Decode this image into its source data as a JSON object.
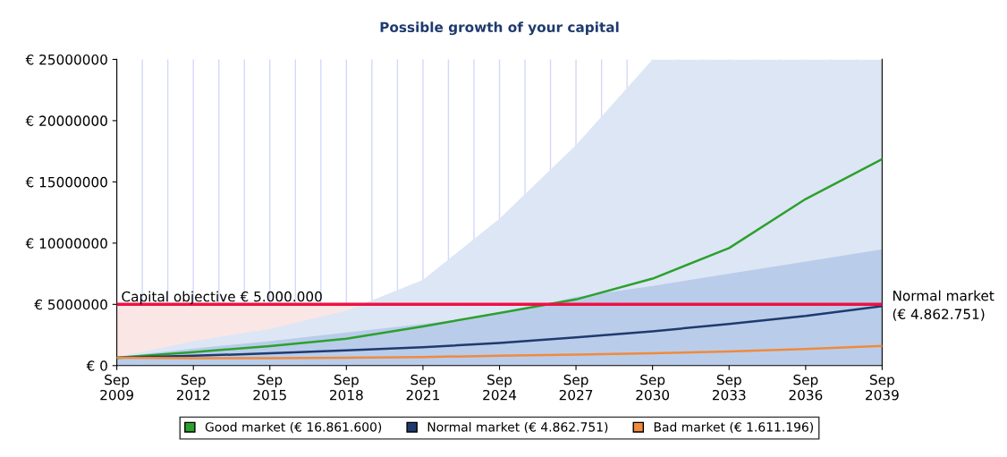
{
  "chart_data": {
    "type": "line",
    "title": "Possible growth of your capital",
    "x": [
      "2009-09",
      "2012-09",
      "2015-09",
      "2018-09",
      "2021-09",
      "2024-09",
      "2027-09",
      "2030-09",
      "2033-09",
      "2036-09",
      "2039-09"
    ],
    "series": [
      {
        "type": "area",
        "color": "#dde6f5",
        "values": [
          700000,
          2000000,
          3000000,
          4500000,
          7000000,
          12000000,
          18000000,
          25000000,
          25000000,
          25000000,
          25000000
        ]
      },
      {
        "type": "area",
        "color": "#b9cdea",
        "values": [
          700000,
          1400000,
          2000000,
          2700000,
          3400000,
          4200000,
          5600000,
          6500000,
          7500000,
          8500000,
          9500000
        ]
      },
      {
        "name": "Good market (€ 16.861.600)",
        "color": "#2ca02c",
        "values": [
          650000,
          1100000,
          1600000,
          2200000,
          3200000,
          4300000,
          5400000,
          7100000,
          9600000,
          13600000,
          16860000
        ]
      },
      {
        "name": "Normal market (€ 4.862.751)",
        "color": "#1f3a6e",
        "values": [
          650000,
          800000,
          1000000,
          1250000,
          1500000,
          1850000,
          2300000,
          2800000,
          3400000,
          4050000,
          4860000
        ]
      },
      {
        "name": "Bad market (€ 1.611.196)",
        "color": "#f08a3c",
        "values": [
          650000,
          600000,
          600000,
          650000,
          700000,
          800000,
          900000,
          1000000,
          1150000,
          1350000,
          1610000
        ]
      }
    ],
    "xlim": [
      "2009-09",
      "2039-09"
    ],
    "xticks": [
      {
        "value": "2009-09",
        "label": "Sep\n2009"
      },
      {
        "value": "2012-09",
        "label": "Sep\n2012"
      },
      {
        "value": "2015-09",
        "label": "Sep\n2015"
      },
      {
        "value": "2018-09",
        "label": "Sep\n2018"
      },
      {
        "value": "2021-09",
        "label": "Sep\n2021"
      },
      {
        "value": "2024-09",
        "label": "Sep\n2024"
      },
      {
        "value": "2027-09",
        "label": "Sep\n2027"
      },
      {
        "value": "2030-09",
        "label": "Sep\n2030"
      },
      {
        "value": "2033-09",
        "label": "Sep\n2033"
      },
      {
        "value": "2036-09",
        "label": "Sep\n2036"
      },
      {
        "value": "2039-09",
        "label": "Sep\n2039"
      }
    ],
    "ylim": [
      0,
      25000000
    ],
    "yticks": [
      {
        "value": 0,
        "label": "€ 0"
      },
      {
        "value": 5000000,
        "label": "€ 5000000"
      },
      {
        "value": 10000000,
        "label": "€ 10000000"
      },
      {
        "value": 15000000,
        "label": "€ 15000000"
      },
      {
        "value": 20000000,
        "label": "€ 20000000"
      },
      {
        "value": 25000000,
        "label": "€ 25000000"
      }
    ],
    "ref_lines": [
      {
        "axis": "y",
        "value": 5000000,
        "label": "Capital objective € 5.000.000",
        "color": "#ee1144"
      }
    ],
    "bands": [
      {
        "axis": "y",
        "from": 0,
        "to": 5000000,
        "color": "#fbe6e6"
      }
    ],
    "annotations": [
      {
        "text": "Normal market\n(€ 4.862.751)",
        "x": "2039-09",
        "y": 4860000
      }
    ],
    "grid": "x",
    "legend": "bottom",
    "marker": "none",
    "line_style": "solid"
  }
}
